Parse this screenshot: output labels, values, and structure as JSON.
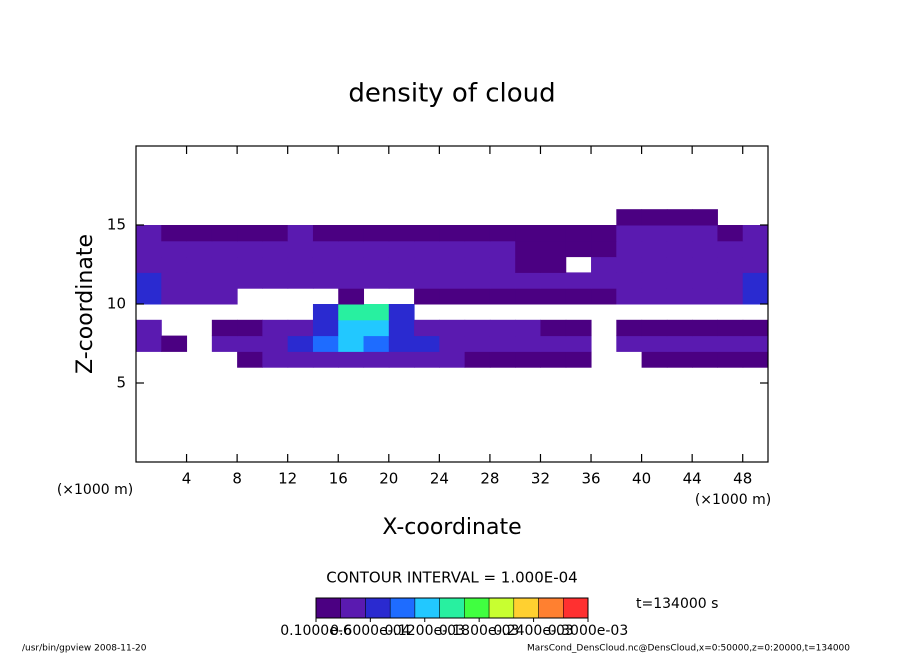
{
  "chart_data": {
    "type": "heatmap",
    "title": "density of cloud",
    "x_label": "X-coordinate",
    "y_label": "Z-coordinate",
    "x_unit": "(×1000 m)",
    "y_unit": "(×1000 m)",
    "x": [
      1,
      3,
      5,
      7,
      9,
      11,
      13,
      15,
      17,
      19,
      21,
      23,
      25,
      27,
      29,
      31,
      33,
      35,
      37,
      39,
      41,
      43,
      45,
      47,
      49
    ],
    "y": [
      6.5,
      7.5,
      8.5,
      9.5,
      10.5,
      11.5,
      12.5,
      13.5,
      14.5,
      15.5
    ],
    "values": [
      [
        null,
        null,
        null,
        null,
        2e-05,
        3e-05,
        3e-05,
        4e-05,
        5e-05,
        5e-05,
        4e-05,
        3e-05,
        3e-05,
        2e-05,
        2e-05,
        2e-05,
        2e-05,
        2e-05,
        null,
        null,
        2e-05,
        2e-05,
        2e-05,
        2e-05,
        2e-05
      ],
      [
        3e-05,
        2e-05,
        null,
        3e-05,
        3e-05,
        4e-05,
        6e-05,
        9e-05,
        0.00011,
        0.0001,
        8e-05,
        6e-05,
        5e-05,
        4e-05,
        4e-05,
        4e-05,
        3e-05,
        3e-05,
        null,
        3e-05,
        4e-05,
        3e-05,
        3e-05,
        3e-05,
        3e-05
      ],
      [
        3e-05,
        null,
        null,
        2e-05,
        2e-05,
        3e-05,
        4e-05,
        8e-05,
        0.00012,
        0.00012,
        6e-05,
        4e-05,
        3e-05,
        3e-05,
        3e-05,
        3e-05,
        2e-05,
        2e-05,
        null,
        2e-05,
        2e-05,
        2e-05,
        2e-05,
        2e-05,
        2e-05
      ],
      [
        null,
        null,
        null,
        null,
        null,
        null,
        null,
        8e-05,
        0.00015,
        0.00015,
        6e-05,
        null,
        null,
        null,
        null,
        null,
        null,
        null,
        null,
        null,
        null,
        null,
        null,
        null,
        null
      ],
      [
        6e-05,
        4e-05,
        3e-05,
        3e-05,
        null,
        null,
        null,
        null,
        2e-05,
        null,
        null,
        2e-05,
        2e-05,
        2e-05,
        2e-05,
        2e-05,
        2e-05,
        2e-05,
        2e-05,
        3e-05,
        3e-05,
        3e-05,
        3e-05,
        4e-05,
        7e-05
      ],
      [
        6e-05,
        4e-05,
        3e-05,
        3e-05,
        3e-05,
        4e-05,
        4e-05,
        4e-05,
        3e-05,
        3e-05,
        3e-05,
        3e-05,
        3e-05,
        3e-05,
        3e-05,
        3e-05,
        3e-05,
        3e-05,
        3e-05,
        4e-05,
        5e-05,
        5e-05,
        4e-05,
        5e-05,
        6e-05
      ],
      [
        5e-05,
        4e-05,
        3e-05,
        3e-05,
        4e-05,
        4e-05,
        5e-05,
        4e-05,
        3e-05,
        4e-05,
        3e-05,
        4e-05,
        3e-05,
        3e-05,
        3e-05,
        2e-05,
        2e-05,
        null,
        3e-05,
        4e-05,
        4e-05,
        3e-05,
        3e-05,
        4e-05,
        5e-05
      ],
      [
        4e-05,
        3e-05,
        3e-05,
        3e-05,
        3e-05,
        3e-05,
        4e-05,
        3e-05,
        3e-05,
        3e-05,
        3e-05,
        3e-05,
        3e-05,
        3e-05,
        3e-05,
        2e-05,
        2e-05,
        2e-05,
        2e-05,
        4e-05,
        4e-05,
        4e-05,
        3e-05,
        3e-05,
        4e-05
      ],
      [
        3e-05,
        2e-05,
        2e-05,
        2e-05,
        2e-05,
        2e-05,
        3e-05,
        2e-05,
        2e-05,
        2e-05,
        2e-05,
        2e-05,
        2e-05,
        2e-05,
        2e-05,
        2e-05,
        2e-05,
        2e-05,
        2e-05,
        3e-05,
        3e-05,
        3e-05,
        3e-05,
        2e-05,
        3e-05
      ],
      [
        null,
        null,
        null,
        null,
        null,
        null,
        null,
        null,
        null,
        null,
        null,
        null,
        null,
        null,
        null,
        null,
        null,
        null,
        null,
        1e-05,
        1e-05,
        1e-05,
        1e-05,
        null,
        null
      ]
    ],
    "xlim": [
      0,
      50
    ],
    "ylim": [
      0,
      20
    ],
    "xticks": [
      4,
      8,
      12,
      16,
      20,
      24,
      28,
      32,
      36,
      40,
      44,
      48
    ],
    "yticks": [
      5,
      10,
      15
    ],
    "colorbar": {
      "colors": [
        "#4b0082",
        "#5a1ab0",
        "#2a2ad0",
        "#1e6cff",
        "#22c8ff",
        "#28f0a0",
        "#40ff40",
        "#c8ff30",
        "#ffd030",
        "#ff8030",
        "#ff3030"
      ],
      "ticks": [
        {
          "value": 1e-07,
          "label": "0.1000e-6"
        },
        {
          "value": 6e-05,
          "label": "0.6000e-04"
        },
        {
          "value": 0.00012,
          "label": "0.1200e-03"
        },
        {
          "value": 0.00018,
          "label": "0.1800e-03"
        },
        {
          "value": 0.00024,
          "label": "0.2400e-03"
        },
        {
          "value": 0.0003,
          "label": "0.3000e-03"
        }
      ]
    },
    "contour_interval": "CONTOUR INTERVAL = 1.000E-04",
    "time": "t=134000 s"
  },
  "footer": {
    "left": "/usr/bin/gpview   2008-11-20",
    "right": "MarsCond_DensCloud.nc@DensCloud,x=0:50000,z=0:20000,t=134000"
  }
}
